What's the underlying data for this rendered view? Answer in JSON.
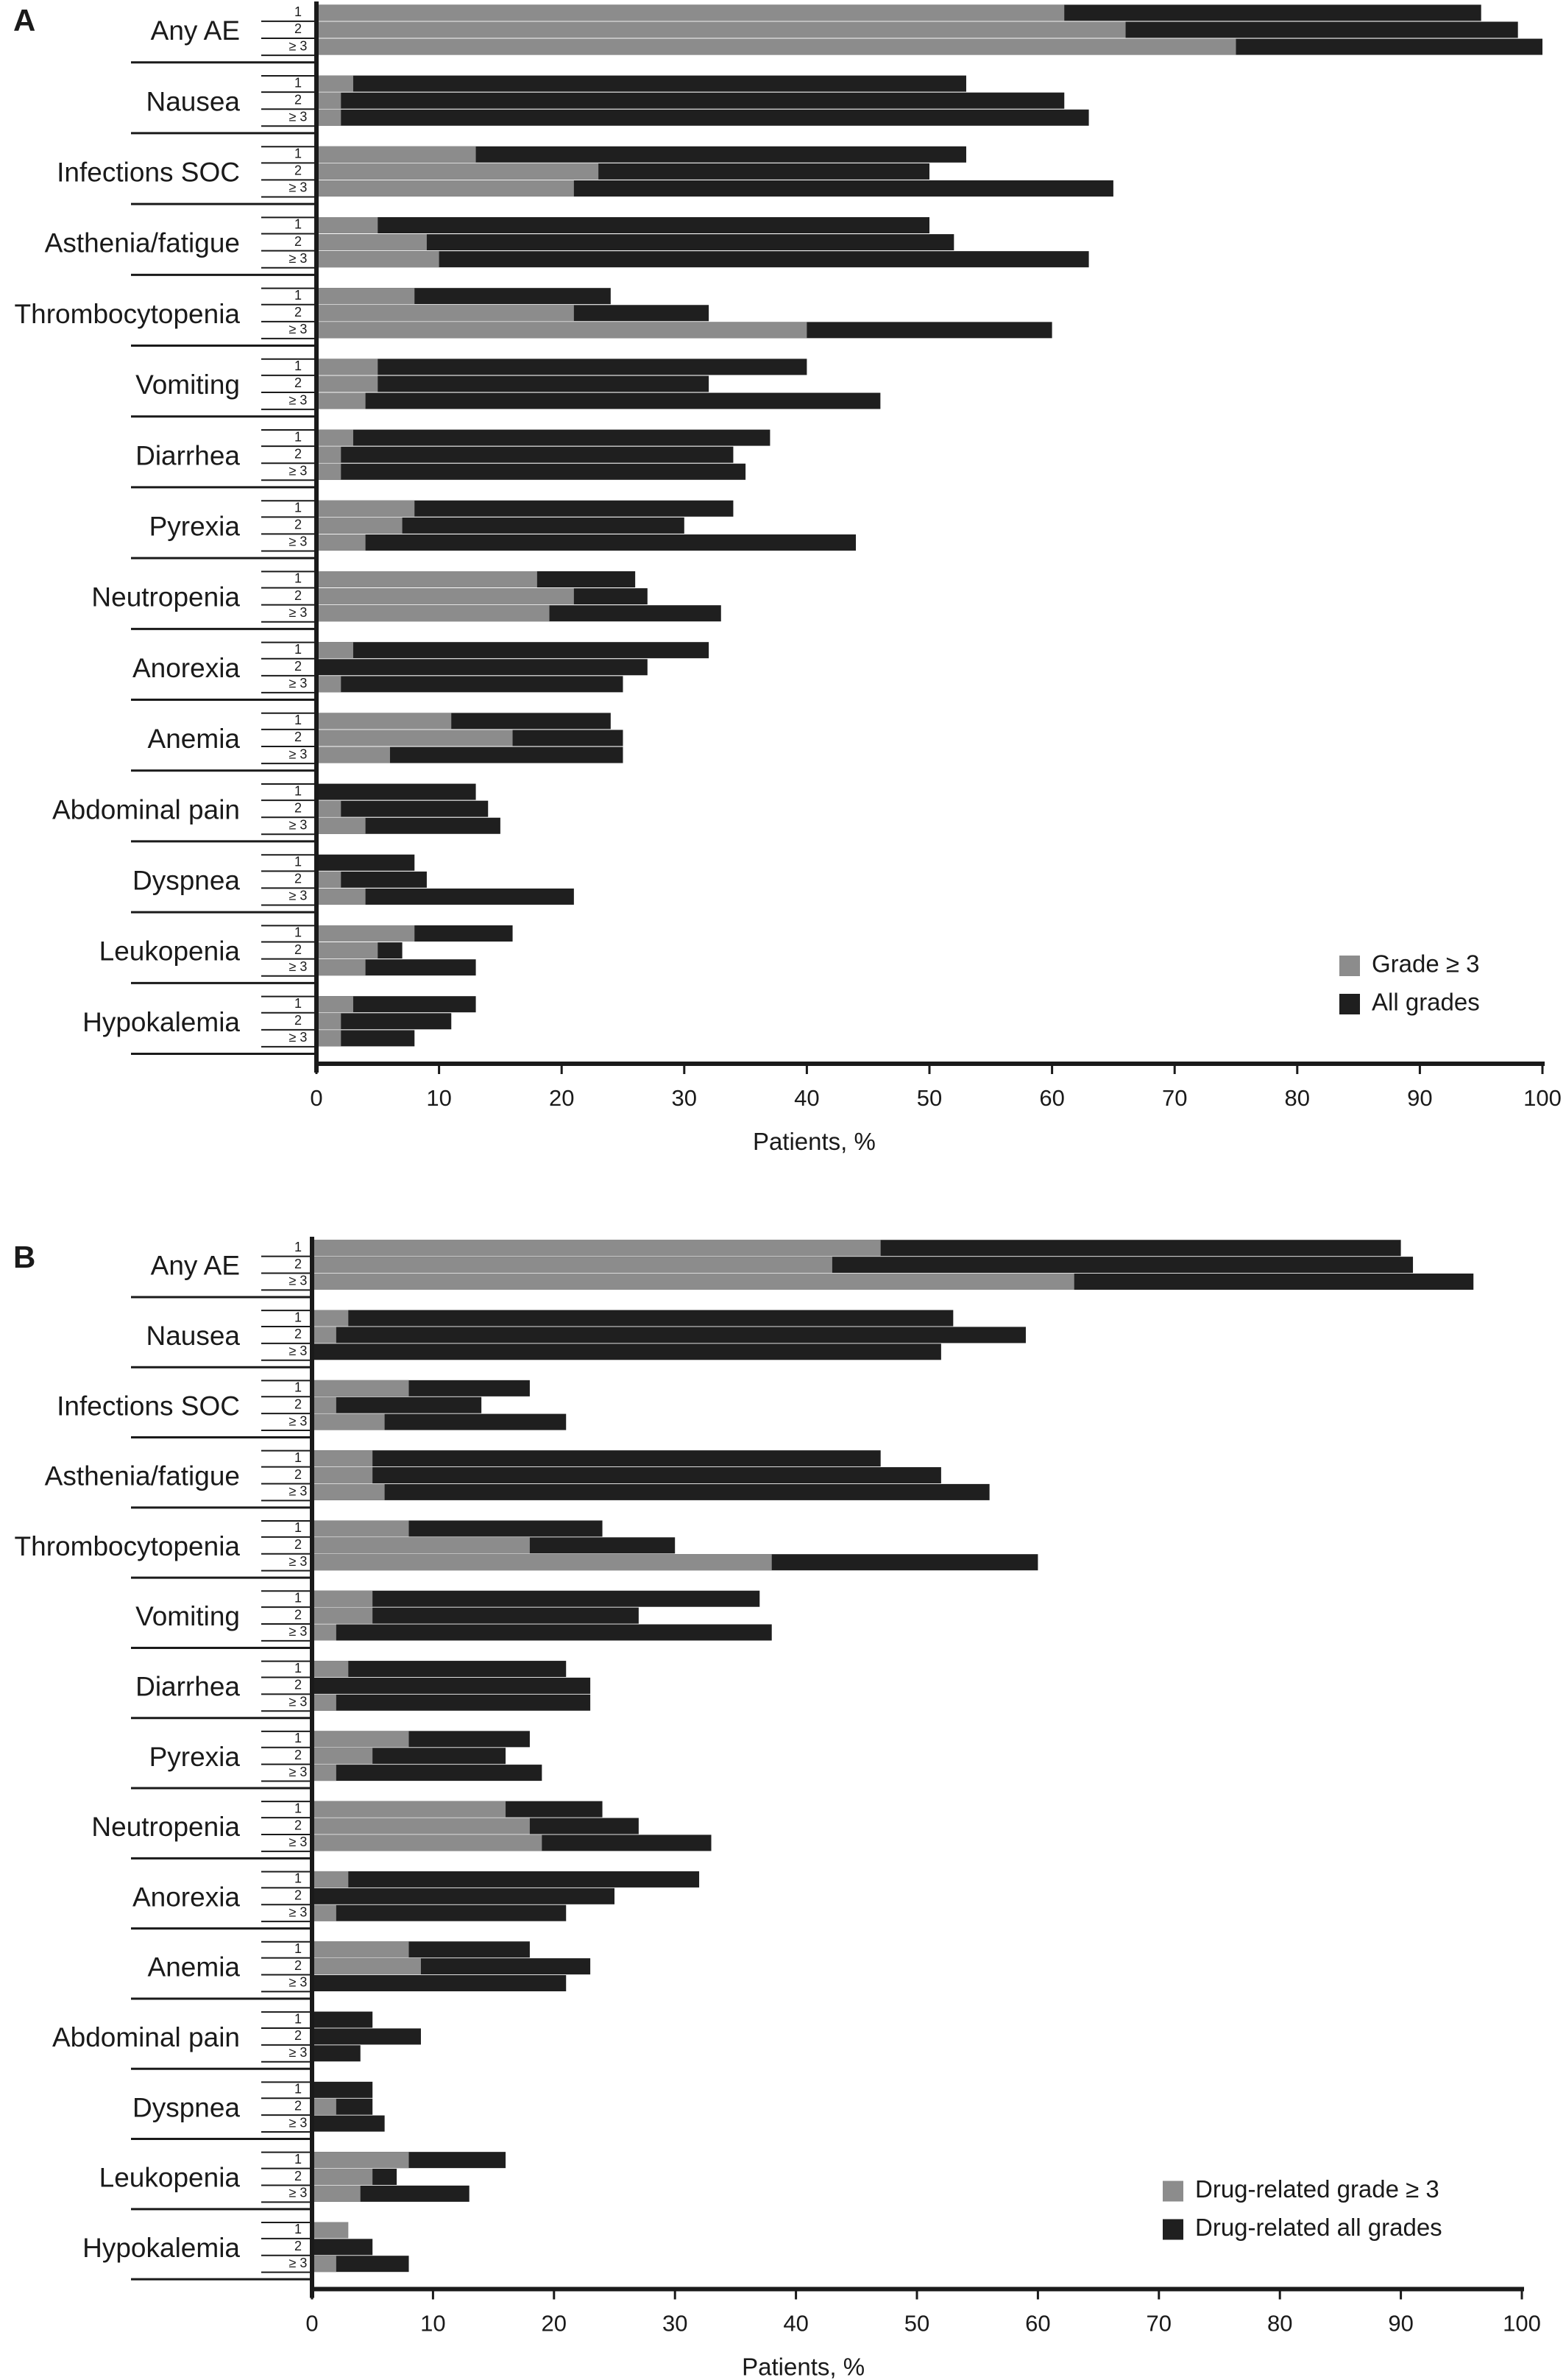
{
  "colors": {
    "grade3": "#8c8c8c",
    "all": "#1f1f1f",
    "axis": "#1a1a1a"
  },
  "chart_data": [
    {
      "type": "bar",
      "orientation": "horizontal",
      "stacked": "overlay",
      "panel": "A",
      "xlabel": "Patients, %",
      "xlim": [
        0,
        100
      ],
      "xticks": [
        "0",
        "10",
        "20",
        "30",
        "40",
        "50",
        "60",
        "70",
        "80",
        "90",
        "100"
      ],
      "subgroups": [
        "1",
        "2",
        "≥ 3"
      ],
      "legend": {
        "position": "bottom-right",
        "entries": [
          "Grade ≥ 3",
          "All grades"
        ]
      },
      "categories": [
        {
          "name": "Any AE",
          "grade3": [
            61,
            66,
            75
          ],
          "all": [
            95,
            98,
            100
          ]
        },
        {
          "name": "Nausea",
          "grade3": [
            3,
            2,
            2
          ],
          "all": [
            53,
            61,
            63
          ]
        },
        {
          "name": "Infections SOC",
          "grade3": [
            13,
            23,
            21
          ],
          "all": [
            53,
            50,
            65
          ]
        },
        {
          "name": "Asthenia/fatigue",
          "grade3": [
            5,
            9,
            10
          ],
          "all": [
            50,
            52,
            63
          ]
        },
        {
          "name": "Thrombocytopenia",
          "grade3": [
            8,
            21,
            40
          ],
          "all": [
            24,
            32,
            60
          ]
        },
        {
          "name": "Vomiting",
          "grade3": [
            5,
            5,
            4
          ],
          "all": [
            40,
            32,
            46
          ]
        },
        {
          "name": "Diarrhea",
          "grade3": [
            3,
            2,
            2
          ],
          "all": [
            37,
            34,
            35
          ]
        },
        {
          "name": "Pyrexia",
          "grade3": [
            8,
            7,
            4
          ],
          "all": [
            34,
            30,
            44
          ]
        },
        {
          "name": "Neutropenia",
          "grade3": [
            18,
            21,
            19
          ],
          "all": [
            26,
            27,
            33
          ]
        },
        {
          "name": "Anorexia",
          "grade3": [
            3,
            0,
            2
          ],
          "all": [
            32,
            27,
            25
          ]
        },
        {
          "name": "Anemia",
          "grade3": [
            11,
            16,
            6
          ],
          "all": [
            24,
            25,
            25
          ]
        },
        {
          "name": "Abdominal pain",
          "grade3": [
            0,
            2,
            4
          ],
          "all": [
            13,
            14,
            15
          ]
        },
        {
          "name": "Dyspnea",
          "grade3": [
            0,
            2,
            4
          ],
          "all": [
            8,
            9,
            21
          ]
        },
        {
          "name": "Leukopenia",
          "grade3": [
            8,
            5,
            4
          ],
          "all": [
            16,
            7,
            13
          ]
        },
        {
          "name": "Hypokalemia",
          "grade3": [
            3,
            2,
            2
          ],
          "all": [
            13,
            11,
            8
          ]
        }
      ]
    },
    {
      "type": "bar",
      "orientation": "horizontal",
      "stacked": "overlay",
      "panel": "B",
      "xlabel": "Patients, %",
      "xlim": [
        0,
        100
      ],
      "xticks": [
        "0",
        "10",
        "20",
        "30",
        "40",
        "50",
        "60",
        "70",
        "80",
        "90",
        "100"
      ],
      "subgroups": [
        "1",
        "2",
        "≥ 3"
      ],
      "legend": {
        "position": "bottom-right",
        "entries": [
          "Drug-related grade ≥ 3",
          "Drug-related all grades"
        ]
      },
      "categories": [
        {
          "name": "Any AE",
          "grade3": [
            47,
            43,
            63
          ],
          "all": [
            90,
            91,
            96
          ]
        },
        {
          "name": "Nausea",
          "grade3": [
            3,
            2,
            0
          ],
          "all": [
            53,
            59,
            52
          ]
        },
        {
          "name": "Infections SOC",
          "grade3": [
            8,
            2,
            6
          ],
          "all": [
            18,
            14,
            21
          ]
        },
        {
          "name": "Asthenia/fatigue",
          "grade3": [
            5,
            5,
            6
          ],
          "all": [
            47,
            52,
            56
          ]
        },
        {
          "name": "Thrombocytopenia",
          "grade3": [
            8,
            18,
            38
          ],
          "all": [
            24,
            30,
            60
          ]
        },
        {
          "name": "Vomiting",
          "grade3": [
            5,
            5,
            2
          ],
          "all": [
            37,
            27,
            38
          ]
        },
        {
          "name": "Diarrhea",
          "grade3": [
            3,
            0,
            2
          ],
          "all": [
            21,
            23,
            23
          ]
        },
        {
          "name": "Pyrexia",
          "grade3": [
            8,
            5,
            2
          ],
          "all": [
            18,
            16,
            19
          ]
        },
        {
          "name": "Neutropenia",
          "grade3": [
            16,
            18,
            19
          ],
          "all": [
            24,
            27,
            33
          ]
        },
        {
          "name": "Anorexia",
          "grade3": [
            3,
            0,
            2
          ],
          "all": [
            32,
            25,
            21
          ]
        },
        {
          "name": "Anemia",
          "grade3": [
            8,
            9,
            0
          ],
          "all": [
            18,
            23,
            21
          ]
        },
        {
          "name": "Abdominal pain",
          "grade3": [
            0,
            0,
            0
          ],
          "all": [
            5,
            9,
            4
          ]
        },
        {
          "name": "Dyspnea",
          "grade3": [
            0,
            2,
            0
          ],
          "all": [
            5,
            5,
            6
          ]
        },
        {
          "name": "Leukopenia",
          "grade3": [
            8,
            5,
            4
          ],
          "all": [
            16,
            7,
            13
          ]
        },
        {
          "name": "Hypokalemia",
          "grade3": [
            3,
            0,
            2
          ],
          "all": [
            0,
            5,
            8
          ]
        }
      ]
    }
  ]
}
